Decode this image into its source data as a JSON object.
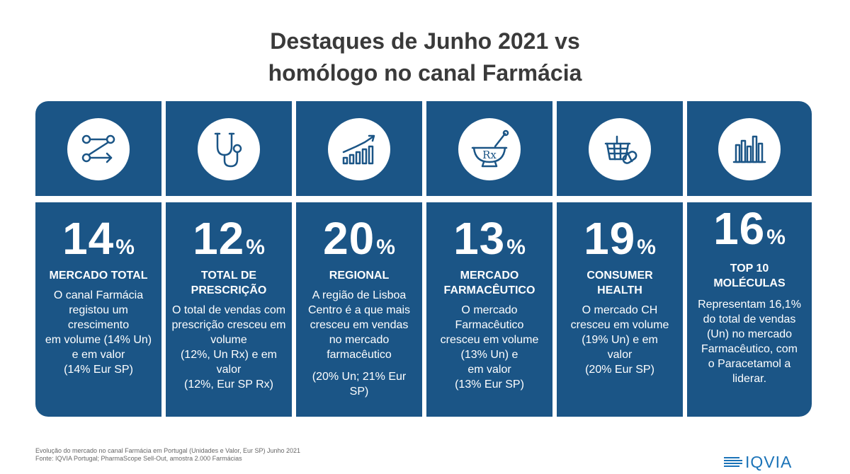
{
  "title": {
    "line1": "Destaques de Junho 2021 vs",
    "line2": "homólogo no canal Farmácia"
  },
  "colors": {
    "panel": "#1b5586",
    "divider": "#ffffff",
    "title": "#3a3a3a",
    "logo": "#1b73b8"
  },
  "cards": [
    {
      "icon": "flow-arrows-icon",
      "value": "14",
      "unit": "%",
      "heading": [
        "MERCADO TOTAL"
      ],
      "description": [
        "O canal Farmácia",
        "registou um",
        "crescimento",
        "em volume (14% Un)",
        "e em valor",
        "(14% Eur SP)"
      ]
    },
    {
      "icon": "stethoscope-icon",
      "value": "12",
      "unit": "%",
      "heading": [
        "TOTAL DE",
        "PRESCRIÇÃO"
      ],
      "description": [
        "O total de vendas com",
        "prescrição cresceu em",
        "volume",
        "(12%, Un Rx) e em",
        "valor",
        "(12%, Eur SP Rx)"
      ]
    },
    {
      "icon": "growth-chart-icon",
      "value": "20",
      "unit": "%",
      "heading": [
        "REGIONAL"
      ],
      "description": [
        "A região de Lisboa",
        "Centro é a que mais",
        "cresceu em vendas",
        "no mercado",
        "farmacêutico"
      ],
      "description2": [
        "(20% Un; 21% Eur",
        "SP)"
      ]
    },
    {
      "icon": "mortar-rx-icon",
      "value": "13",
      "unit": "%",
      "heading": [
        "MERCADO",
        "FARMACÊUTICO"
      ],
      "description": [
        "O mercado",
        "Farmacêutico",
        "cresceu em volume",
        "(13% Un) e",
        "em valor",
        "(13% Eur SP)"
      ]
    },
    {
      "icon": "basket-pill-icon",
      "value": "19",
      "unit": "%",
      "heading": [
        "CONSUMER",
        "HEALTH"
      ],
      "description": [
        "O mercado CH",
        "cresceu em volume",
        "(19% Un) e em",
        "valor",
        "(20% Eur SP)"
      ]
    },
    {
      "icon": "bar-chart-icon",
      "value": "16",
      "unit": "%",
      "heading": [
        "TOP 10",
        "MOLÉCULAS"
      ],
      "description": [
        "Representam 16,1%",
        "do total de vendas",
        "(Un) no mercado",
        "Farmacêutico, com",
        "o Paracetamol a",
        "liderar."
      ]
    }
  ],
  "footer": {
    "line1": "Evolução do mercado no canal Farmácia em Portugal (Unidades e Valor, Eur SP) Junho 2021",
    "line2": "Fonte: IQVIA Portugal; PharmaScope Sell-Out, amostra 2.000 Farmácias"
  },
  "logo": {
    "text": "IQVIA"
  }
}
